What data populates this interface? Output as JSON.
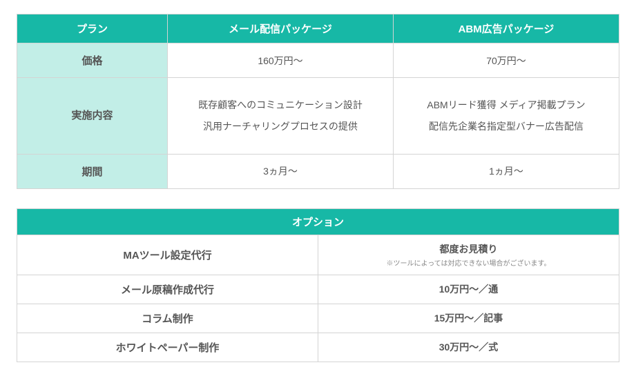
{
  "colors": {
    "header_bg": "#17b8a6",
    "header_fg": "#ffffff",
    "rowlabel_bg": "#c2eee7",
    "border": "#d4d4d4",
    "text": "#555555",
    "note_text": "#888888",
    "page_bg": "#ffffff"
  },
  "plan_table": {
    "type": "table",
    "column_widths": [
      "25%",
      "37.5%",
      "37.5%"
    ],
    "header_fontsize": 15,
    "cell_fontsize": 14,
    "headers": [
      "プラン",
      "メール配信パッケージ",
      "ABM広告パッケージ"
    ],
    "rows": [
      {
        "label": "価格",
        "cells": [
          "160万円〜",
          "70万円〜"
        ]
      },
      {
        "label": "実施内容",
        "cells": [
          "既存顧客へのコミュニケーション設計\n汎用ナーチャリングプロセスの提供",
          "ABMリード獲得 メディア掲載プラン\n配信先企業名指定型バナー広告配信"
        ],
        "tall": true
      },
      {
        "label": "期間",
        "cells": [
          "3ヵ月〜",
          "1ヵ月〜"
        ]
      }
    ]
  },
  "option_table": {
    "type": "table",
    "title": "オプション",
    "column_widths": [
      "50%",
      "50%"
    ],
    "header_fontsize": 15,
    "cell_fontsize": 14,
    "note_fontsize": 10,
    "rows": [
      {
        "label": "MAツール設定代行",
        "value": "都度お見積り",
        "note": "※ツールによっては対応できない場合がございます。"
      },
      {
        "label": "メール原稿作成代行",
        "value": "10万円〜／通"
      },
      {
        "label": "コラム制作",
        "value": "15万円〜／記事"
      },
      {
        "label": "ホワイトペーパー制作",
        "value": "30万円〜／式"
      }
    ]
  }
}
